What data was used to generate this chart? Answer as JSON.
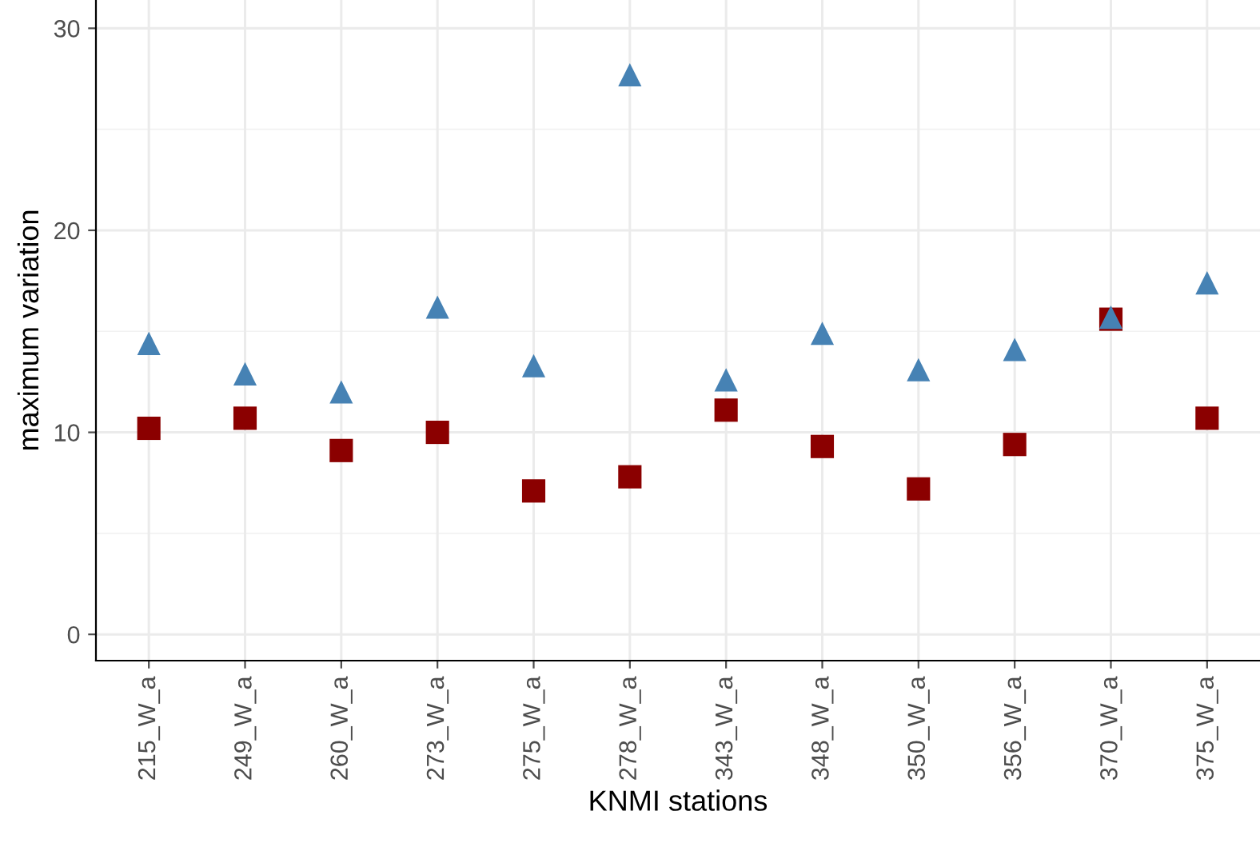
{
  "chart_data": {
    "type": "scatter",
    "xlabel": "KNMI stations",
    "ylabel": "maximum variation",
    "categories": [
      "215_W_a",
      "249_W_a",
      "260_W_a",
      "273_W_a",
      "275_W_a",
      "278_W_a",
      "343_W_a",
      "348_W_a",
      "350_W_a",
      "356_W_a",
      "370_W_a",
      "375_W_a"
    ],
    "series": [
      {
        "color": "#8b0000",
        "marker": "square",
        "values": [
          10.2,
          10.7,
          9.1,
          10.0,
          7.1,
          7.8,
          11.1,
          9.3,
          7.2,
          9.4,
          15.6,
          10.7
        ]
      },
      {
        "color": "#4682b4",
        "marker": "triangle",
        "values": [
          14.4,
          12.9,
          12.0,
          16.2,
          13.3,
          27.7,
          12.6,
          14.9,
          13.1,
          14.1,
          15.7,
          17.4
        ]
      }
    ],
    "ylim": [
      -1.3,
      31.4
    ],
    "yticks": [
      0,
      10,
      20,
      30
    ],
    "grid": true
  }
}
